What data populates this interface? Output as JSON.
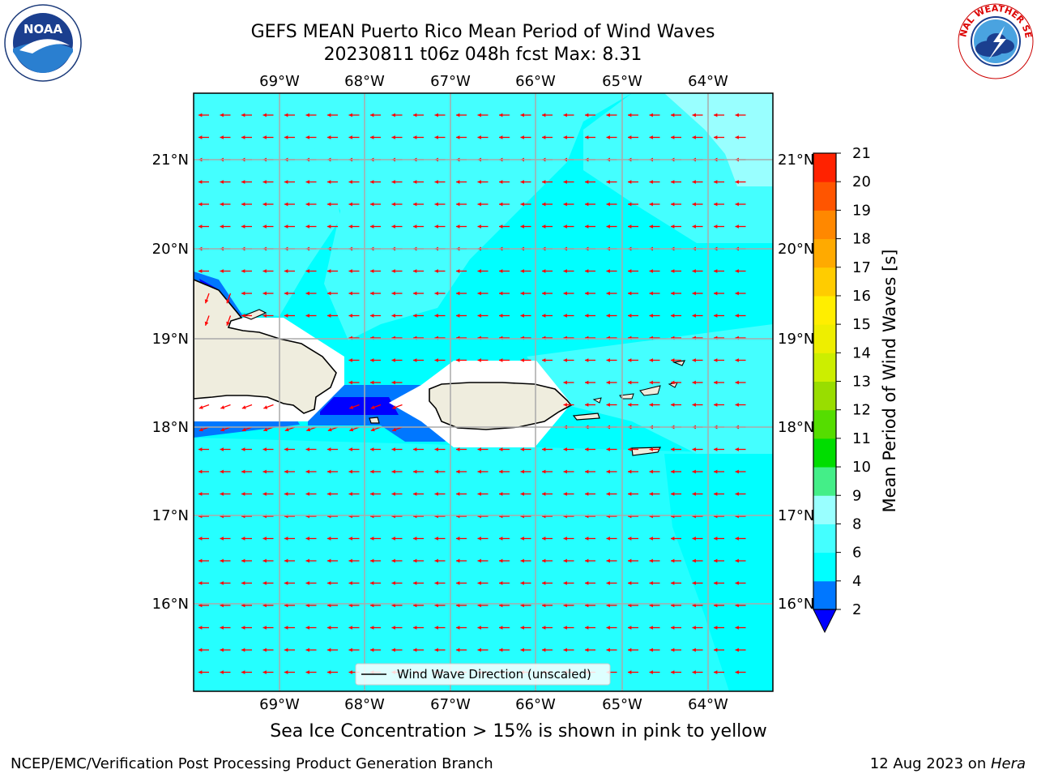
{
  "header": {
    "title_line1": "GEFS MEAN Puerto Rico Mean Period of Wind Waves",
    "title_line2": "20230811 t06z 048h fcst   Max: 8.31"
  },
  "logos": {
    "left": {
      "name": "noaa-logo",
      "text": "NOAA"
    },
    "right": {
      "name": "nws-logo",
      "text": "NATIONAL WEATHER SERVICE"
    }
  },
  "map": {
    "lon_labels": [
      "69°W",
      "68°W",
      "67°W",
      "66°W",
      "65°W",
      "64°W"
    ],
    "lat_labels": [
      "21°N",
      "20°N",
      "19°N",
      "18°N",
      "17°N",
      "16°N"
    ],
    "legend_label": "Wind Wave Direction (unscaled)",
    "arrow_color": "#ff0000",
    "land_color": "#efedde",
    "ocean_color": "#00ffff"
  },
  "colorbar": {
    "label": "Mean Period of Wind Waves [s]",
    "ticks": [
      "21",
      "20",
      "19",
      "18",
      "17",
      "16",
      "15",
      "14",
      "13",
      "12",
      "11",
      "10",
      "9",
      "8",
      "6",
      "4",
      "2"
    ],
    "colors_bottom_to_top": [
      "#0000ff",
      "#0077ff",
      "#00ffff",
      "#44ffff",
      "#99ffff",
      "#44ee88",
      "#00dd00",
      "#55dd00",
      "#99dd00",
      "#ccee00",
      "#eeee00",
      "#ffee00",
      "#ffcc00",
      "#ffaa00",
      "#ff8800",
      "#ff5500",
      "#ff2200",
      "#ff0000"
    ]
  },
  "caption": "Sea Ice Concentration > 15% is shown in pink to yellow",
  "footer": {
    "left": "NCEP/EMC/Verification Post Processing Product Generation Branch",
    "right_date": "12 Aug 2023 on ",
    "right_host": "Hera"
  }
}
